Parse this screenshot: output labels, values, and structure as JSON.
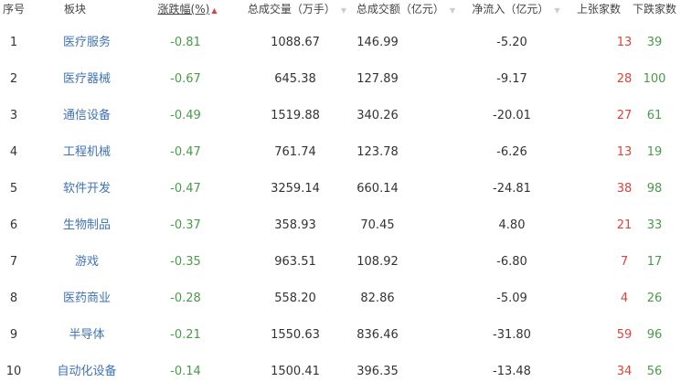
{
  "headers": {
    "rank": "序号",
    "name": "板块",
    "change": "涨跌幅(%)",
    "volume": "总成交量（万手）",
    "amount": "总成交额（亿元）",
    "netflow": "净流入（亿元）",
    "up": "上张家数",
    "down": "下跌家数"
  },
  "sort": {
    "column": "change",
    "direction": "ascending",
    "active_arrow": "▲",
    "inactive_arrow": "▼"
  },
  "colors": {
    "link": "#3f73b8",
    "negative": "#4a9a4a",
    "positive": "#d9453c"
  },
  "rows": [
    {
      "rank": "1",
      "name": "医疗服务",
      "change": "-0.81",
      "volume": "1088.67",
      "amount": "146.99",
      "netflow": "-5.20",
      "up": "13",
      "down": "39"
    },
    {
      "rank": "2",
      "name": "医疗器械",
      "change": "-0.67",
      "volume": "645.38",
      "amount": "127.89",
      "netflow": "-9.17",
      "up": "28",
      "down": "100"
    },
    {
      "rank": "3",
      "name": "通信设备",
      "change": "-0.49",
      "volume": "1519.88",
      "amount": "340.26",
      "netflow": "-20.01",
      "up": "27",
      "down": "61"
    },
    {
      "rank": "4",
      "name": "工程机械",
      "change": "-0.47",
      "volume": "761.74",
      "amount": "123.78",
      "netflow": "-6.26",
      "up": "13",
      "down": "19"
    },
    {
      "rank": "5",
      "name": "软件开发",
      "change": "-0.47",
      "volume": "3259.14",
      "amount": "660.14",
      "netflow": "-24.81",
      "up": "38",
      "down": "98"
    },
    {
      "rank": "6",
      "name": "生物制品",
      "change": "-0.37",
      "volume": "358.93",
      "amount": "70.45",
      "netflow": "4.80",
      "up": "21",
      "down": "33"
    },
    {
      "rank": "7",
      "name": "游戏",
      "change": "-0.35",
      "volume": "963.51",
      "amount": "108.92",
      "netflow": "-6.80",
      "up": "7",
      "down": "17"
    },
    {
      "rank": "8",
      "name": "医药商业",
      "change": "-0.28",
      "volume": "558.20",
      "amount": "82.86",
      "netflow": "-5.09",
      "up": "4",
      "down": "26"
    },
    {
      "rank": "9",
      "name": "半导体",
      "change": "-0.21",
      "volume": "1550.63",
      "amount": "836.46",
      "netflow": "-31.80",
      "up": "59",
      "down": "96"
    },
    {
      "rank": "10",
      "name": "自动化设备",
      "change": "-0.14",
      "volume": "1500.41",
      "amount": "396.35",
      "netflow": "-13.48",
      "up": "34",
      "down": "56"
    }
  ]
}
